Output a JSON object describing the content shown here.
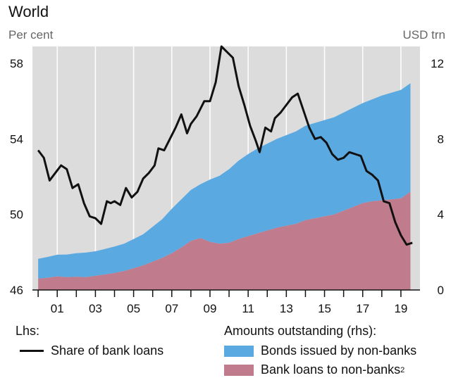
{
  "header": {
    "title": "World",
    "left_unit": "Per cent",
    "right_unit": "USD trn"
  },
  "legend": {
    "lhs_heading": "Lhs:",
    "rhs_heading": "Amounts outstanding (rhs):",
    "items": [
      {
        "label": "Share of bank loans",
        "sup": ""
      },
      {
        "label": "Bonds issued by non-banks",
        "sup": ""
      },
      {
        "label": "Bank loans to non-banks",
        "sup": "2"
      }
    ]
  },
  "colors": {
    "plot_bg": "#dcdcdc",
    "bonds": "#5ba9e1",
    "bank_loans": "#c07b8c",
    "share_line": "#111111"
  },
  "chart_data": {
    "type": "area",
    "x_tick_labels": [
      "01",
      "03",
      "05",
      "07",
      "09",
      "11",
      "13",
      "15",
      "17",
      "19"
    ],
    "x_ticks": [
      2001,
      2003,
      2005,
      2007,
      2009,
      2011,
      2013,
      2015,
      2017,
      2019
    ],
    "xlim": [
      1999.7,
      2020.0
    ],
    "left_axis": {
      "ticks": [
        46,
        50,
        54,
        58
      ],
      "ylim": [
        46,
        58.9
      ]
    },
    "right_axis": {
      "ticks": [
        0,
        4,
        8,
        12
      ],
      "ylim": [
        0,
        12.9
      ]
    },
    "grid": "vertical",
    "series": [
      {
        "name": "Bank loans to non-banks",
        "axis": "right",
        "kind": "area-stack-bottom",
        "x": [
          2000.0,
          2000.5,
          2001.0,
          2001.5,
          2002.0,
          2002.5,
          2003.0,
          2003.5,
          2004.0,
          2004.5,
          2005.0,
          2005.5,
          2006.0,
          2006.5,
          2007.0,
          2007.5,
          2008.0,
          2008.5,
          2009.0,
          2009.5,
          2010.0,
          2010.5,
          2011.0,
          2011.5,
          2012.0,
          2012.5,
          2013.0,
          2013.5,
          2014.0,
          2014.5,
          2015.0,
          2015.5,
          2016.0,
          2016.5,
          2017.0,
          2017.5,
          2018.0,
          2018.5,
          2019.0,
          2019.5
        ],
        "values": [
          0.6,
          0.65,
          0.72,
          0.68,
          0.7,
          0.68,
          0.75,
          0.82,
          0.9,
          1.0,
          1.15,
          1.3,
          1.5,
          1.7,
          1.95,
          2.25,
          2.6,
          2.75,
          2.55,
          2.45,
          2.5,
          2.7,
          2.85,
          3.0,
          3.15,
          3.3,
          3.4,
          3.5,
          3.7,
          3.8,
          3.9,
          4.0,
          4.2,
          4.4,
          4.6,
          4.7,
          4.75,
          4.8,
          4.85,
          5.2
        ]
      },
      {
        "name": "Bonds issued by non-banks",
        "axis": "right",
        "kind": "area-stack-top",
        "x": [
          2000.0,
          2000.5,
          2001.0,
          2001.5,
          2002.0,
          2002.5,
          2003.0,
          2003.5,
          2004.0,
          2004.5,
          2005.0,
          2005.5,
          2006.0,
          2006.5,
          2007.0,
          2007.5,
          2008.0,
          2008.5,
          2009.0,
          2009.5,
          2010.0,
          2010.5,
          2011.0,
          2011.5,
          2012.0,
          2012.5,
          2013.0,
          2013.5,
          2014.0,
          2014.5,
          2015.0,
          2015.5,
          2016.0,
          2016.5,
          2017.0,
          2017.5,
          2018.0,
          2018.5,
          2019.0,
          2019.5
        ],
        "values": [
          1.05,
          1.1,
          1.15,
          1.2,
          1.25,
          1.3,
          1.3,
          1.35,
          1.4,
          1.45,
          1.55,
          1.65,
          1.85,
          2.05,
          2.35,
          2.55,
          2.7,
          2.85,
          3.3,
          3.6,
          3.9,
          4.15,
          4.35,
          4.5,
          4.6,
          4.7,
          4.8,
          4.9,
          5.0,
          5.05,
          5.1,
          5.15,
          5.2,
          5.25,
          5.3,
          5.4,
          5.55,
          5.65,
          5.75,
          5.75
        ]
      },
      {
        "name": "Share of bank loans",
        "axis": "left",
        "kind": "line",
        "x": [
          2000.0,
          2000.3,
          2000.6,
          2000.9,
          2001.2,
          2001.5,
          2001.8,
          2002.1,
          2002.4,
          2002.7,
          2003.0,
          2003.3,
          2003.6,
          2003.8,
          2004.0,
          2004.3,
          2004.6,
          2004.9,
          2005.2,
          2005.5,
          2005.8,
          2006.1,
          2006.3,
          2006.6,
          2006.9,
          2007.2,
          2007.5,
          2007.8,
          2008.0,
          2008.3,
          2008.5,
          2008.7,
          2009.0,
          2009.3,
          2009.6,
          2009.9,
          2010.2,
          2010.5,
          2010.8,
          2011.1,
          2011.4,
          2011.6,
          2011.9,
          2012.2,
          2012.4,
          2012.7,
          2013.0,
          2013.3,
          2013.6,
          2013.9,
          2014.2,
          2014.5,
          2014.8,
          2015.1,
          2015.4,
          2015.7,
          2016.0,
          2016.3,
          2016.6,
          2016.9,
          2017.2,
          2017.5,
          2017.8,
          2018.1,
          2018.4,
          2018.7,
          2019.0,
          2019.3,
          2019.6
        ],
        "values": [
          53.4,
          53.0,
          51.8,
          52.2,
          52.6,
          52.4,
          51.4,
          51.6,
          50.6,
          49.9,
          49.8,
          49.5,
          50.7,
          50.6,
          50.7,
          50.5,
          51.4,
          50.9,
          51.2,
          51.9,
          52.2,
          52.6,
          53.5,
          53.4,
          54.0,
          54.6,
          55.3,
          54.3,
          54.8,
          55.2,
          55.6,
          56.0,
          56.0,
          57.0,
          58.9,
          58.6,
          58.3,
          56.8,
          55.8,
          54.7,
          53.9,
          53.3,
          54.6,
          54.4,
          55.1,
          55.4,
          55.8,
          56.2,
          56.4,
          55.5,
          54.6,
          54.0,
          54.1,
          53.8,
          53.2,
          52.9,
          53.0,
          53.3,
          53.2,
          53.1,
          52.3,
          52.1,
          51.8,
          50.7,
          50.6,
          49.6,
          48.9,
          48.4,
          48.5
        ]
      }
    ]
  }
}
